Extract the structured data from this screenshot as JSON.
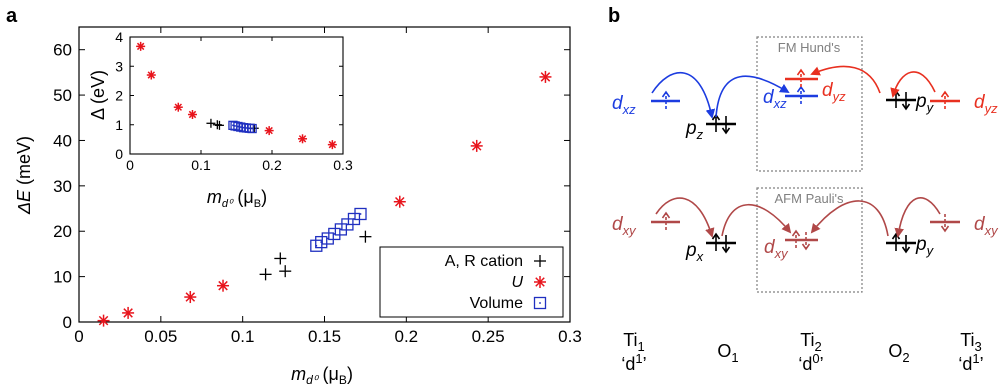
{
  "chart_data": {
    "type": "scatter",
    "panel_label": "a",
    "xlabel": {
      "main": "m",
      "sub": "d⁰",
      "unit": " (μ",
      "unit_sub": "B",
      "unit_end": ")"
    },
    "ylabel": {
      "main": "ΔE",
      "unit": " (meV)"
    },
    "xlim": [
      0,
      0.3
    ],
    "ylim": [
      0,
      65
    ],
    "xticks": [
      "0",
      "0.05",
      "0.1",
      "0.15",
      "0.2",
      "0.25",
      "0.3"
    ],
    "yticks": [
      "0",
      "10",
      "20",
      "30",
      "40",
      "50",
      "60"
    ],
    "legend": {
      "placement": "bottom-right"
    },
    "series": [
      {
        "name": "A, R cation",
        "marker": "plus",
        "color": "#000000",
        "x": [
          0.114,
          0.123,
          0.126,
          0.175
        ],
        "y": [
          10.5,
          14.0,
          11.2,
          18.8
        ]
      },
      {
        "name": "U",
        "marker": "asterisk",
        "color": "#e8141c",
        "x": [
          0.015,
          0.03,
          0.068,
          0.088,
          0.196,
          0.243,
          0.285
        ],
        "y": [
          0.3,
          2.0,
          5.5,
          8.0,
          26.5,
          38.8,
          54.0
        ]
      },
      {
        "name": "Volume",
        "marker": "square",
        "color": "#2030c0",
        "x": [
          0.145,
          0.148,
          0.152,
          0.156,
          0.16,
          0.164,
          0.168,
          0.172
        ],
        "y": [
          16.8,
          17.6,
          18.4,
          19.4,
          20.4,
          21.5,
          22.7,
          23.8
        ]
      }
    ],
    "inset": {
      "xlabel": {
        "main": "m",
        "sub": "d⁰",
        "unit": " (μ",
        "unit_sub": "B",
        "unit_end": ")"
      },
      "ylabel": "Δ (eV)",
      "xlim": [
        0,
        0.3
      ],
      "ylim": [
        0,
        4
      ],
      "xticks": [
        "0",
        "0.1",
        "0.2",
        "0.3"
      ],
      "yticks": [
        "0",
        "1",
        "2",
        "3",
        "4"
      ],
      "series": [
        {
          "name": "A, R cation",
          "marker": "plus",
          "color": "#000000",
          "x": [
            0.114,
            0.123,
            0.126,
            0.175
          ],
          "y": [
            1.05,
            1.0,
            0.98,
            0.88
          ]
        },
        {
          "name": "U",
          "marker": "asterisk",
          "color": "#e8141c",
          "x": [
            0.015,
            0.03,
            0.068,
            0.088,
            0.196,
            0.243,
            0.285
          ],
          "y": [
            3.68,
            2.7,
            1.6,
            1.35,
            0.8,
            0.52,
            0.32
          ]
        },
        {
          "name": "Volume",
          "marker": "square",
          "color": "#2030c0",
          "x": [
            0.145,
            0.148,
            0.152,
            0.156,
            0.16,
            0.164,
            0.168,
            0.172
          ],
          "y": [
            0.98,
            0.96,
            0.94,
            0.92,
            0.9,
            0.89,
            0.88,
            0.87
          ]
        }
      ]
    }
  },
  "schematic": {
    "panel_label": "b",
    "colors": {
      "fm": "#1c3ce0",
      "fm_red": "#e83020",
      "afm": "#b04848",
      "box": "#808080"
    },
    "fm_box_label": "FM Hund's",
    "afm_box_label": "AFM Pauli's",
    "orbitals": {
      "dxz": {
        "main": "d",
        "sub": "xz"
      },
      "dyz": {
        "main": "d",
        "sub": "yz"
      },
      "dxy": {
        "main": "d",
        "sub": "xy"
      },
      "pz": {
        "main": "p",
        "sub": "z"
      },
      "py": {
        "main": "p",
        "sub": "y"
      },
      "px": {
        "main": "p",
        "sub": "x"
      }
    },
    "sites": [
      {
        "name": "Ti",
        "sub": "1",
        "config": "‘d",
        "config_sup": "1",
        "config_end": "’"
      },
      {
        "name": "O",
        "sub": "1"
      },
      {
        "name": "Ti",
        "sub": "2",
        "config": "‘d",
        "config_sup": "0",
        "config_end": "’"
      },
      {
        "name": "O",
        "sub": "2"
      },
      {
        "name": "Ti",
        "sub": "3",
        "config": "‘d",
        "config_sup": "1",
        "config_end": "’"
      }
    ]
  }
}
